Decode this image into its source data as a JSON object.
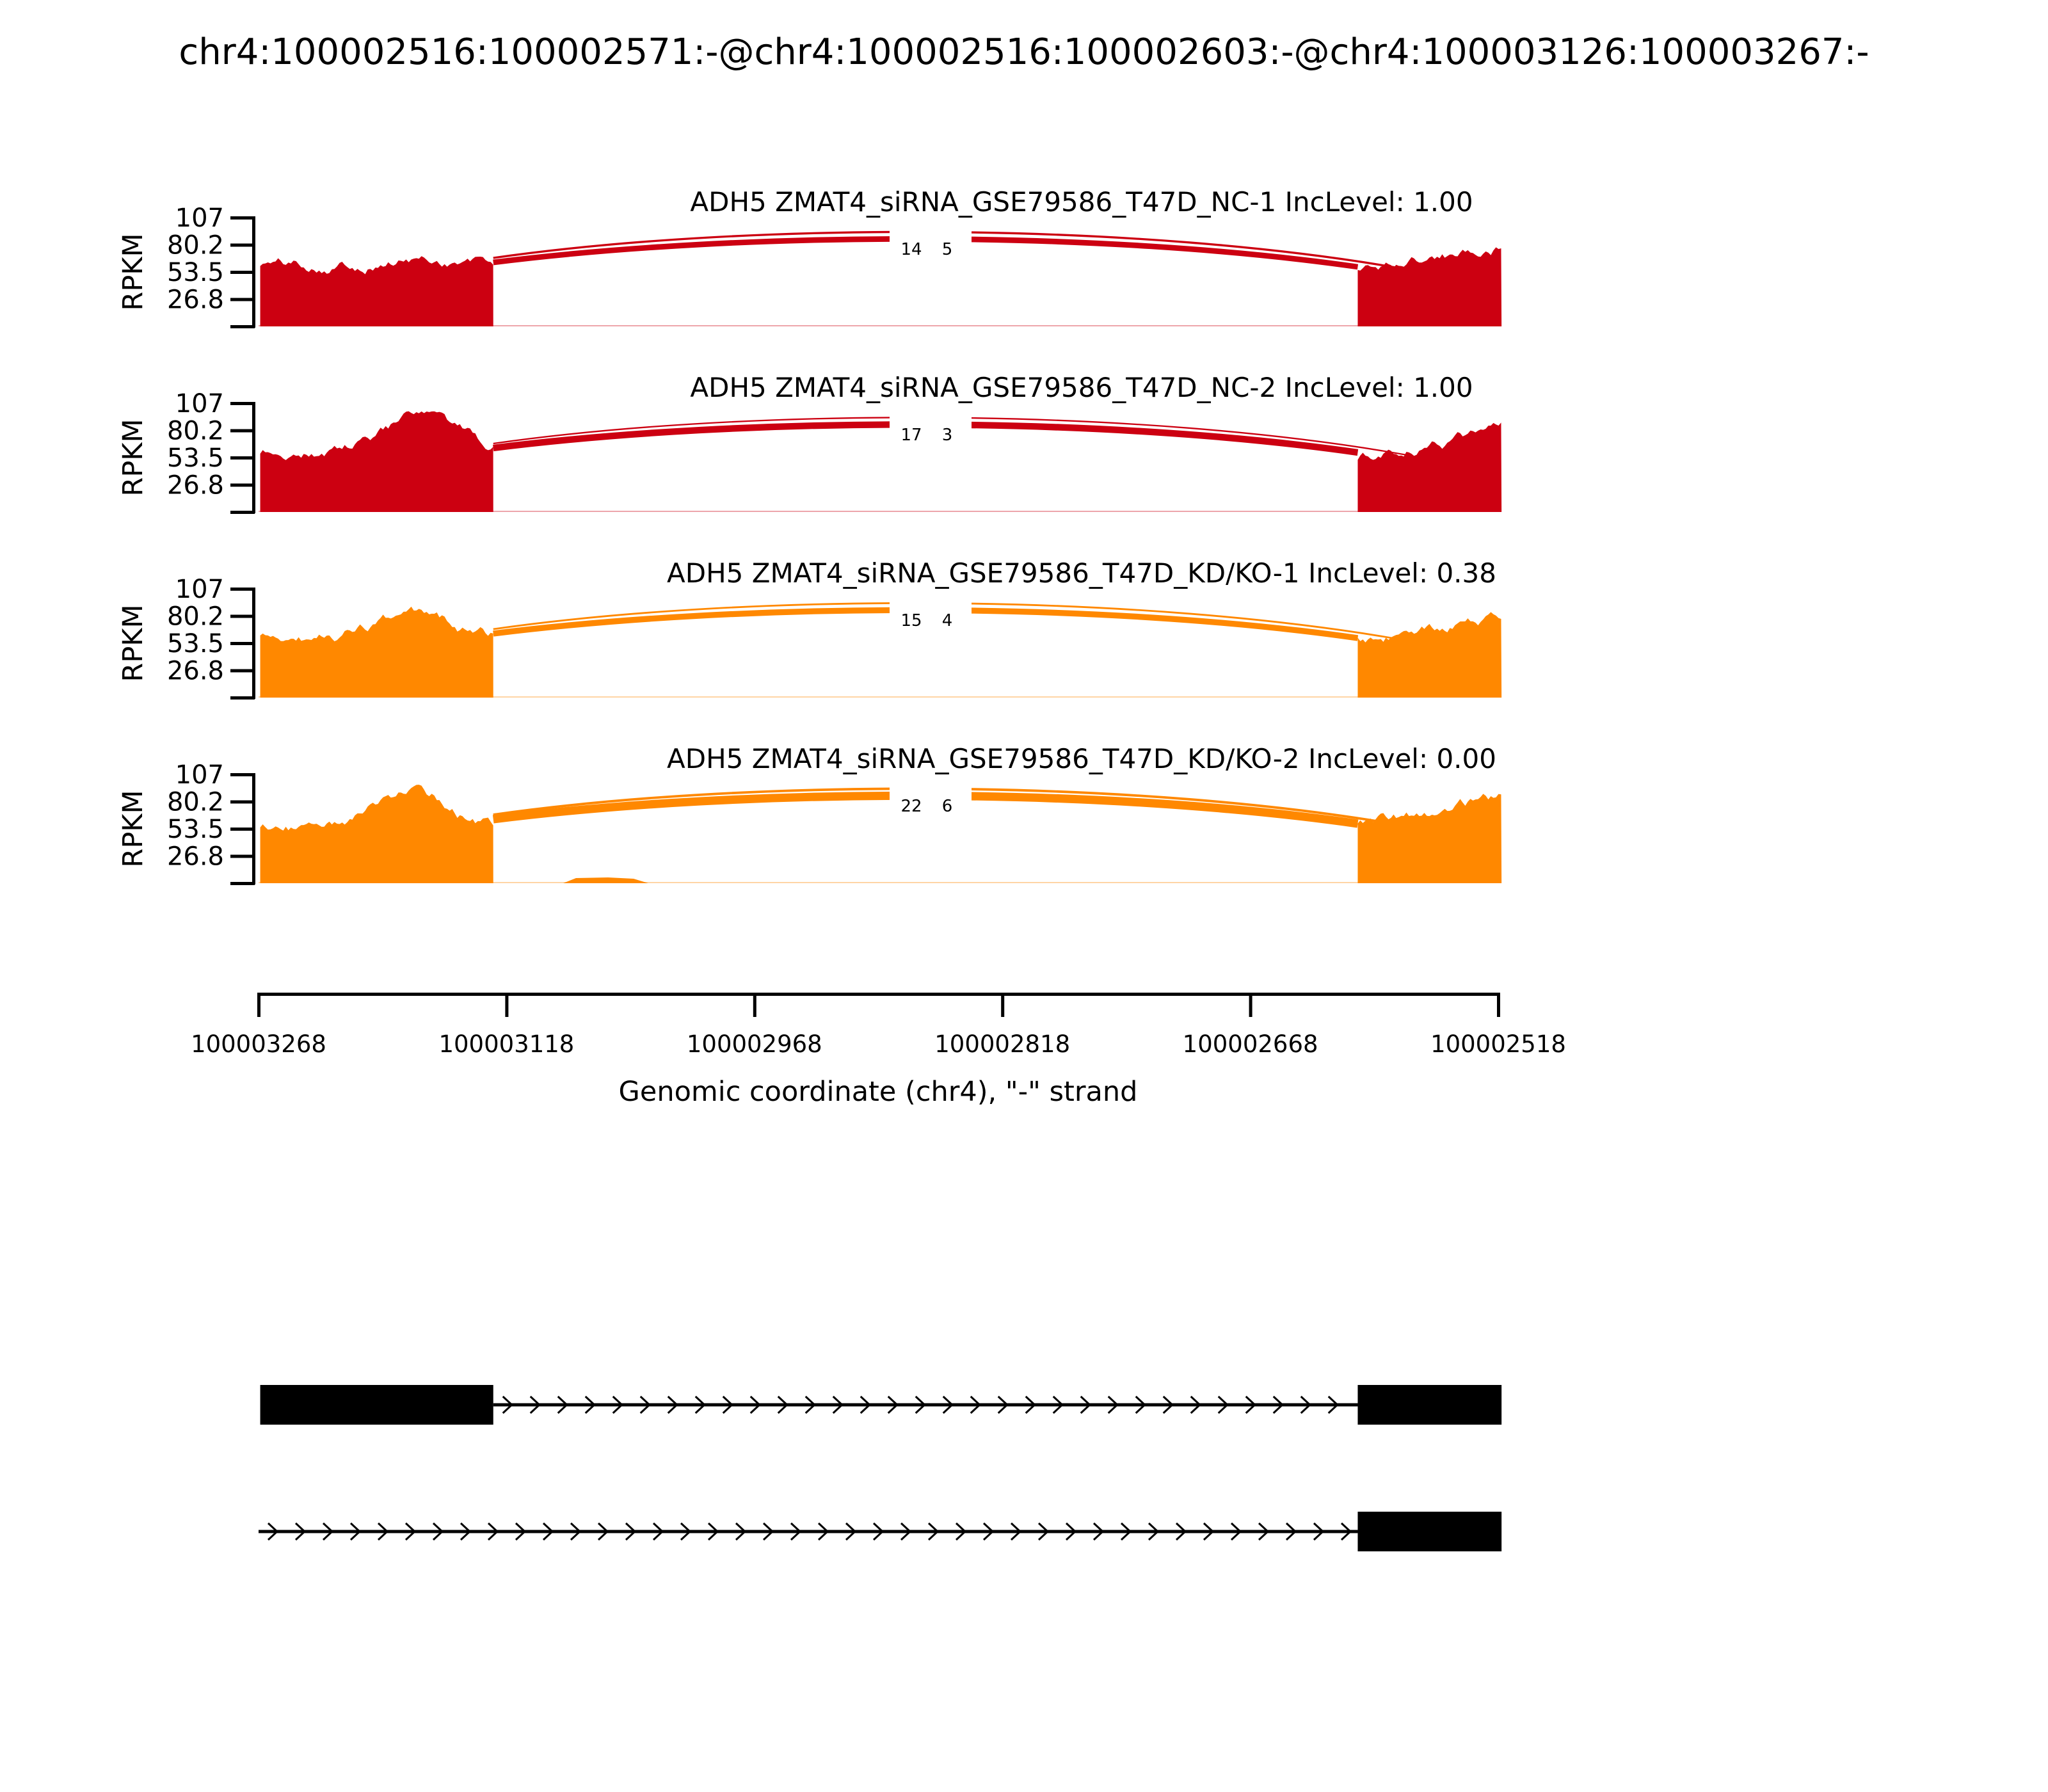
{
  "title": "chr4:100002516:100002571:-@chr4:100002516:100002603:-@chr4:100003126:100003267:-",
  "y_axis": {
    "label": "RPKM",
    "ticks": [
      "107",
      "80.2",
      "53.5",
      "26.8"
    ]
  },
  "x_axis": {
    "label": "Genomic coordinate (chr4), \"-\" strand",
    "ticks": [
      "100003268",
      "100003118",
      "100002968",
      "100002818",
      "100002668",
      "100002518"
    ]
  },
  "chart_data": {
    "type": "sashimi",
    "strand": "-",
    "x_domain_bp": [
      100003268,
      100002518
    ],
    "y_max_rpkm": 107,
    "y_ticks_rpkm": [
      107,
      80.2,
      53.5,
      26.8
    ],
    "exon_regions_bp": {
      "upstream_long_exon": [
        100003267,
        100003126
      ],
      "downstream_exon": [
        100002603,
        100002516
      ],
      "alt_splice_site_bp": 100002571
    },
    "junction_spans_bp": [
      {
        "from_bp": 100003126,
        "to_bp": 100002603
      },
      {
        "from_bp": 100003126,
        "to_bp": 100002571
      }
    ],
    "tracks": [
      {
        "label": "ADH5 ZMAT4_siRNA_GSE79586_T47D_NC-1 IncLevel: 1.00",
        "inc_level": "1.00",
        "color": "#CC0011",
        "junction_reads": [
          14,
          5
        ],
        "approx_exon_coverage_rpkm": 62
      },
      {
        "label": "ADH5 ZMAT4_siRNA_GSE79586_T47D_NC-2 IncLevel: 1.00",
        "inc_level": "1.00",
        "color": "#CC0011",
        "junction_reads": [
          17,
          3
        ],
        "approx_exon_coverage_rpkm": 65
      },
      {
        "label": "ADH5 ZMAT4_siRNA_GSE79586_T47D_KD/KO-1 IncLevel: 0.38",
        "inc_level": "0.38",
        "color": "#FF8800",
        "junction_reads": [
          15,
          4
        ],
        "approx_exon_coverage_rpkm": 62
      },
      {
        "label": "ADH5 ZMAT4_siRNA_GSE79586_T47D_KD/KO-2 IncLevel: 0.00",
        "inc_level": "0.00",
        "color": "#FF8800",
        "junction_reads": [
          22,
          6
        ],
        "approx_exon_coverage_rpkm": 63
      }
    ],
    "transcripts": [
      {
        "exon_boxes_bp": [
          [
            100003267,
            100003126
          ],
          [
            100002603,
            100002516
          ]
        ],
        "intron_line_bp": [
          100003126,
          100002603
        ]
      },
      {
        "exon_boxes_bp": [
          [
            100002603,
            100002516
          ]
        ],
        "intron_line_bp": [
          100003268,
          100002603
        ]
      }
    ]
  }
}
